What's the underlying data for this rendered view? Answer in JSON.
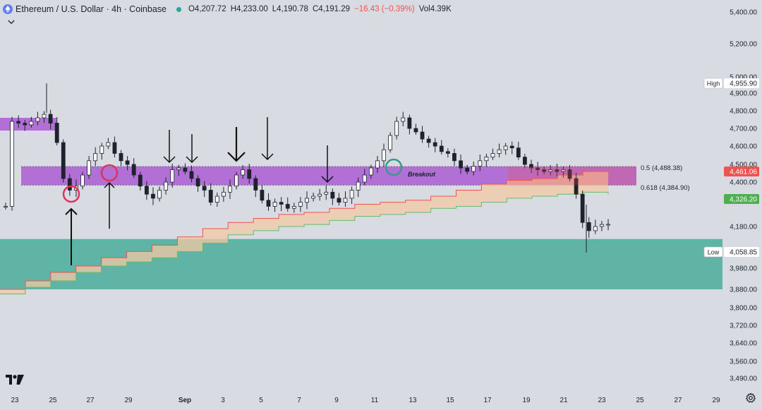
{
  "header": {
    "symbol_title": "Ethereum / U.S. Dollar · 4h · Coinbase",
    "open": "O4,207.72",
    "high": "H4,233.00",
    "low": "L4,190.78",
    "close": "C4,191.29",
    "change": "−16.43 (−0.39%)",
    "volume": "Vol4.39K",
    "change_color": "#ef5350",
    "status_color": "#26a69a",
    "icon": "ethereum-icon"
  },
  "annotations": {
    "breakout_label": "Breakout",
    "fib_05_label": "0.5 (4,488.38)",
    "fib_0618_label": "0.618 (4,384.90)",
    "high_tag": "High",
    "low_tag": "Low"
  },
  "price_badges": {
    "last_price": "4,461.06",
    "last_price_color": "#ef5350",
    "second_price": "4,326.20",
    "second_price_color": "#4caf50",
    "high_value": "4,955.90",
    "low_value": "4,058.85"
  },
  "colors": {
    "purple_zone": "#b26fd6",
    "teal_zone": "#5fb4a5",
    "red_circle": "#e0325a",
    "teal_circle": "#3a9a8a",
    "cloud_fill": "#f3c9a6",
    "cloud_upper_line": "#ef5350",
    "cloud_lower_line": "#66bb6a",
    "background": "#d8dbe2"
  },
  "chart_data": {
    "type": "candlestick",
    "title": "Ethereum / U.S. Dollar · 4h · Coinbase",
    "y_ticks": [
      "5,400.00",
      "5,200.00",
      "5,000.00",
      "4,900.00",
      "4,800.00",
      "4,700.00",
      "4,600.00",
      "4,500.00",
      "4,400.00",
      "4,180.00",
      "3,980.00",
      "3,880.00",
      "3,800.00",
      "3,720.00",
      "3,640.00",
      "3,560.00",
      "3,490.00"
    ],
    "x_ticks": [
      "23",
      "25",
      "27",
      "29",
      "Sep",
      "3",
      "5",
      "7",
      "9",
      "11",
      "13",
      "15",
      "17",
      "19",
      "21",
      "23",
      "25",
      "27",
      "29"
    ],
    "horizontal_zones": [
      {
        "name": "purple zone",
        "from": 4385,
        "to": 4488
      },
      {
        "name": "teal zone",
        "from": 3880,
        "to": 4120
      }
    ],
    "fib_levels": [
      {
        "label": "0.5 (4,488.38)",
        "value": 4488.38
      },
      {
        "label": "0.618 (4,384.90)",
        "value": 4384.9
      }
    ],
    "key_levels": {
      "high": 4955.9,
      "low": 4058.85,
      "last": 4461.06,
      "second": 4326.2
    },
    "close_path": [
      4280,
      4740,
      4730,
      4720,
      4740,
      4760,
      4780,
      4730,
      4620,
      4420,
      4360,
      4380,
      4440,
      4520,
      4560,
      4600,
      4620,
      4560,
      4520,
      4500,
      4440,
      4380,
      4340,
      4320,
      4360,
      4400,
      4470,
      4480,
      4460,
      4420,
      4380,
      4360,
      4300,
      4330,
      4350,
      4380,
      4440,
      4470,
      4420,
      4360,
      4310,
      4280,
      4300,
      4290,
      4270,
      4280,
      4300,
      4320,
      4330,
      4340,
      4350,
      4320,
      4300,
      4320,
      4360,
      4400,
      4440,
      4480,
      4520,
      4580,
      4660,
      4740,
      4760,
      4700,
      4680,
      4640,
      4620,
      4600,
      4570,
      4560,
      4520,
      4480,
      4460,
      4490,
      4520,
      4540,
      4560,
      4580,
      4600,
      4590,
      4540,
      4500,
      4480,
      4470,
      4460,
      4470,
      4460,
      4470,
      4420,
      4340,
      4200,
      4160,
      4180,
      4190,
      4191
    ],
    "cloud_upper": [
      3880,
      3920,
      3960,
      3990,
      4030,
      4060,
      4090,
      4130,
      4170,
      4200,
      4220,
      4240,
      4250,
      4270,
      4290,
      4300,
      4310,
      4330,
      4360,
      4390,
      4410,
      4420,
      4440,
      4460,
      4470
    ],
    "cloud_lower": [
      3860,
      3890,
      3920,
      3960,
      3990,
      4010,
      4030,
      4060,
      4100,
      4140,
      4160,
      4180,
      4190,
      4210,
      4230,
      4240,
      4250,
      4270,
      4280,
      4300,
      4320,
      4330,
      4340,
      4350,
      4340
    ]
  }
}
